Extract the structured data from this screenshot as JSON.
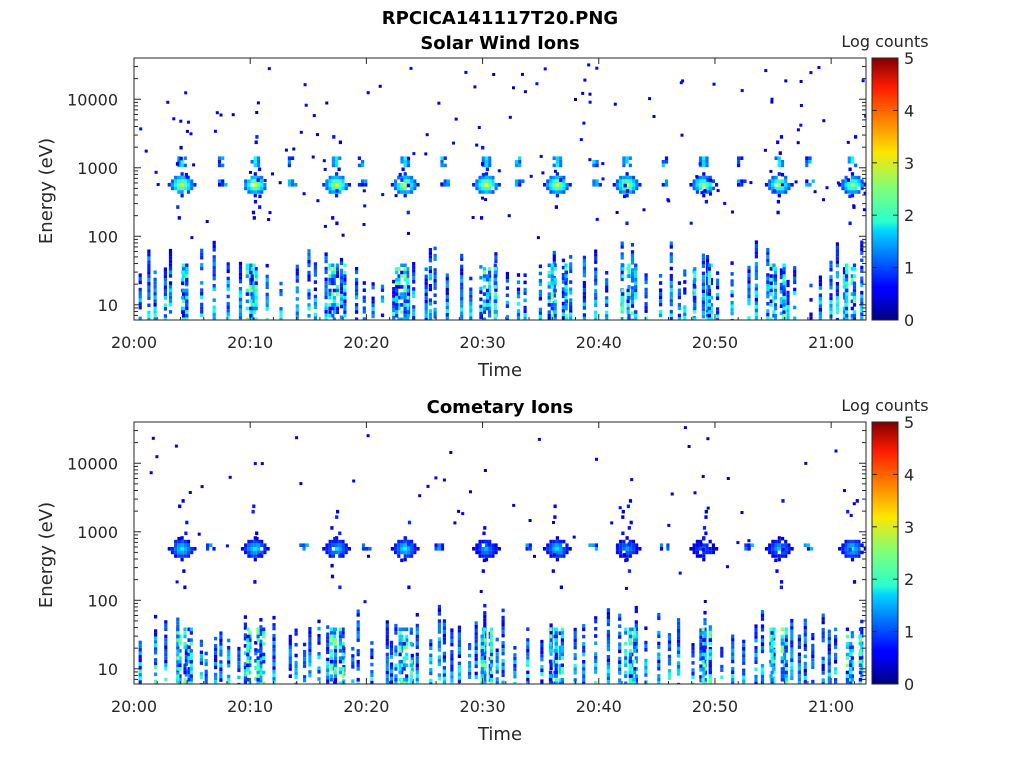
{
  "figure_title": "RPCICA141117T20.PNG",
  "chart_data": [
    {
      "type": "heatmap",
      "title": "Solar Wind Ions",
      "xlabel": "Time",
      "ylabel": "Energy (eV)",
      "yscale": "log",
      "ylim": [
        6,
        40000
      ],
      "yticks": [
        10,
        100,
        1000,
        10000
      ],
      "ytick_labels": [
        "10",
        "100",
        "1000",
        "10000"
      ],
      "xlim": [
        "20:00",
        "21:03"
      ],
      "xticks": [
        "20:00",
        "20:10",
        "20:20",
        "20:30",
        "20:40",
        "20:50",
        "21:00"
      ],
      "colorbar": {
        "label": "Log counts",
        "range": [
          0,
          5
        ],
        "ticks": [
          "0",
          "1",
          "2",
          "3",
          "4",
          "5"
        ],
        "colormap": "jet"
      },
      "beam_times_min": [
        4,
        10.3,
        17.3,
        23.2,
        30.2,
        36.3,
        42.3,
        48.9,
        55.4,
        61.7
      ],
      "beam_energy_eV": 600,
      "beam_peak_log_counts": [
        3.0,
        3.1,
        3.1,
        3.0,
        3.1,
        3.0,
        3.0,
        2.8,
        2.8,
        2.8
      ],
      "secondary_energy_eV": 1300,
      "secondary_peak_log_counts": 1.8,
      "low_energy_range_eV": [
        6,
        90
      ],
      "low_energy_max_log_counts": 2.6
    },
    {
      "type": "heatmap",
      "title": "Cometary Ions",
      "xlabel": "Time",
      "ylabel": "Energy (eV)",
      "yscale": "log",
      "ylim": [
        6,
        40000
      ],
      "yticks": [
        10,
        100,
        1000,
        10000
      ],
      "ytick_labels": [
        "10",
        "100",
        "1000",
        "10000"
      ],
      "xlim": [
        "20:00",
        "21:03"
      ],
      "xticks": [
        "20:00",
        "20:10",
        "20:20",
        "20:30",
        "20:40",
        "20:50",
        "21:00"
      ],
      "colorbar": {
        "label": "Log counts",
        "range": [
          0,
          5
        ],
        "ticks": [
          "0",
          "1",
          "2",
          "3",
          "4",
          "5"
        ],
        "colormap": "jet"
      },
      "beam_times_min": [
        4,
        10.3,
        17.3,
        23.2,
        30.2,
        36.3,
        42.3,
        48.9,
        55.4,
        61.7
      ],
      "beam_energy_eV": 600,
      "beam_peak_log_counts": [
        1.9,
        1.9,
        1.7,
        1.9,
        1.5,
        1.8,
        1.5,
        1.2,
        1.6,
        1.8
      ],
      "low_energy_range_eV": [
        6,
        90
      ],
      "low_energy_max_log_counts": 2.7
    }
  ]
}
